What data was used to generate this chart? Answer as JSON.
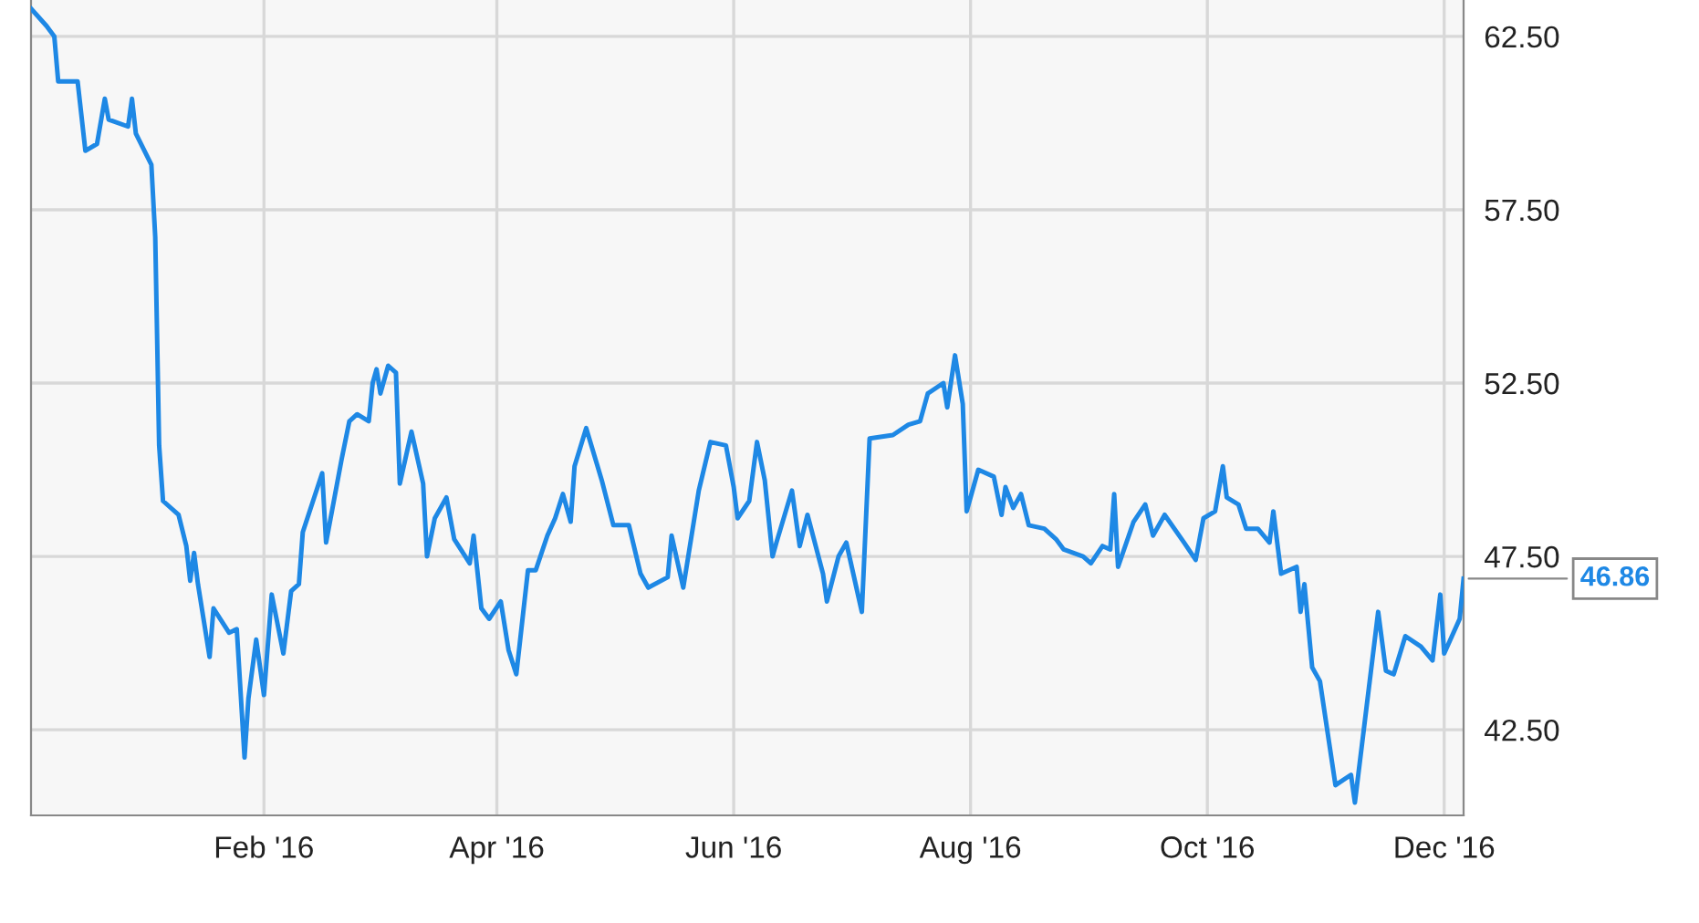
{
  "chart_data": {
    "type": "line",
    "x": [
      "2015-12-03",
      "2015-12-07",
      "2015-12-09",
      "2015-12-10",
      "2015-12-15",
      "2015-12-17",
      "2015-12-20",
      "2015-12-22",
      "2015-12-23",
      "2015-12-28",
      "2015-12-29",
      "2015-12-30",
      "2016-01-03",
      "2016-01-04",
      "2016-01-05",
      "2016-01-06",
      "2016-01-10",
      "2016-01-12",
      "2016-01-13",
      "2016-01-14",
      "2016-01-15",
      "2016-01-18",
      "2016-01-19",
      "2016-01-23",
      "2016-01-25",
      "2016-01-27",
      "2016-01-28",
      "2016-01-30",
      "2016-02-01",
      "2016-02-03",
      "2016-02-06",
      "2016-02-08",
      "2016-02-10",
      "2016-02-11",
      "2016-02-16",
      "2016-02-17",
      "2016-02-21",
      "2016-02-23",
      "2016-02-25",
      "2016-02-28",
      "2016-02-29",
      "2016-03-01",
      "2016-03-02",
      "2016-03-04",
      "2016-03-06",
      "2016-03-07",
      "2016-03-08",
      "2016-03-10",
      "2016-03-13",
      "2016-03-14",
      "2016-03-16",
      "2016-03-19",
      "2016-03-21",
      "2016-03-25",
      "2016-03-26",
      "2016-03-28",
      "2016-03-30",
      "2016-04-02",
      "2016-04-04",
      "2016-04-06",
      "2016-04-09",
      "2016-04-11",
      "2016-04-14",
      "2016-04-16",
      "2016-04-18",
      "2016-04-20",
      "2016-04-21",
      "2016-04-24",
      "2016-04-28",
      "2016-05-01",
      "2016-05-05",
      "2016-05-08",
      "2016-05-10",
      "2016-05-15",
      "2016-05-16",
      "2016-05-19",
      "2016-05-23",
      "2016-05-26",
      "2016-05-30",
      "2016-06-01",
      "2016-06-02",
      "2016-06-05",
      "2016-06-07",
      "2016-06-09",
      "2016-06-11",
      "2016-06-12",
      "2016-06-16",
      "2016-06-18",
      "2016-06-20",
      "2016-06-24",
      "2016-06-25",
      "2016-06-28",
      "2016-06-30",
      "2016-07-04",
      "2016-07-06",
      "2016-07-12",
      "2016-07-16",
      "2016-07-19",
      "2016-07-21",
      "2016-07-25",
      "2016-07-26",
      "2016-07-28",
      "2016-07-30",
      "2016-07-31",
      "2016-08-03",
      "2016-08-07",
      "2016-08-09",
      "2016-08-10",
      "2016-08-12",
      "2016-08-14",
      "2016-08-16",
      "2016-08-20",
      "2016-08-23",
      "2016-08-25",
      "2016-08-30",
      "2016-09-01",
      "2016-09-04",
      "2016-09-06",
      "2016-09-07",
      "2016-09-08",
      "2016-09-12",
      "2016-09-15",
      "2016-09-17",
      "2016-09-20",
      "2016-09-25",
      "2016-09-28",
      "2016-09-30",
      "2016-10-03",
      "2016-10-05",
      "2016-10-06",
      "2016-10-09",
      "2016-10-11",
      "2016-10-14",
      "2016-10-17",
      "2016-10-18",
      "2016-10-20",
      "2016-10-24",
      "2016-10-25",
      "2016-10-26",
      "2016-10-28",
      "2016-10-30",
      "2016-11-03",
      "2016-11-07",
      "2016-11-08",
      "2016-11-14",
      "2016-11-16",
      "2016-11-18",
      "2016-11-21",
      "2016-11-25",
      "2016-11-28",
      "2016-11-30",
      "2016-12-01",
      "2016-12-05",
      "2016-12-06"
    ],
    "series": [
      {
        "color": "#1e88e5",
        "values": [
          63.3,
          62.8,
          62.5,
          61.2,
          61.2,
          59.2,
          59.4,
          60.7,
          60.1,
          59.9,
          60.7,
          59.7,
          58.8,
          56.7,
          50.7,
          49.1,
          48.7,
          47.8,
          46.8,
          47.6,
          46.7,
          44.6,
          46.0,
          45.3,
          45.4,
          41.7,
          43.4,
          45.1,
          43.5,
          46.4,
          44.7,
          46.5,
          46.7,
          48.2,
          49.9,
          47.9,
          50.3,
          51.4,
          51.6,
          51.4,
          52.5,
          52.9,
          52.2,
          53.0,
          52.8,
          49.6,
          50.1,
          51.1,
          49.6,
          47.5,
          48.6,
          49.2,
          48.0,
          47.3,
          48.1,
          46.0,
          45.7,
          46.2,
          44.8,
          44.1,
          47.1,
          47.1,
          48.1,
          48.6,
          49.3,
          48.5,
          50.1,
          51.2,
          49.7,
          48.4,
          48.4,
          47.0,
          46.6,
          46.9,
          48.1,
          46.6,
          49.4,
          50.8,
          50.7,
          49.5,
          48.6,
          49.1,
          50.8,
          49.7,
          47.5,
          47.9,
          49.4,
          47.8,
          48.7,
          47.0,
          46.2,
          47.5,
          47.9,
          45.9,
          50.9,
          51.0,
          51.3,
          51.4,
          52.2,
          52.5,
          51.8,
          53.3,
          51.9,
          48.8,
          50.0,
          49.8,
          48.7,
          49.5,
          48.9,
          49.3,
          48.4,
          48.3,
          48.0,
          47.7,
          47.5,
          47.3,
          47.8,
          47.7,
          49.3,
          47.2,
          48.5,
          49.0,
          48.1,
          48.7,
          47.9,
          47.4,
          48.6,
          48.8,
          50.1,
          49.2,
          49.0,
          48.3,
          48.3,
          47.9,
          48.8,
          47.0,
          47.2,
          45.9,
          46.7,
          44.3,
          43.9,
          40.9,
          41.2,
          40.4,
          45.9,
          44.2,
          44.1,
          45.2,
          44.9,
          44.5,
          46.4,
          44.7,
          45.7,
          46.86
        ]
      }
    ],
    "xlim": [
      "2015-12-03",
      "2016-12-06"
    ],
    "xticks": [
      {
        "value": "2016-02-01",
        "label": "Feb '16"
      },
      {
        "value": "2016-04-01",
        "label": "Apr '16"
      },
      {
        "value": "2016-06-01",
        "label": "Jun '16"
      },
      {
        "value": "2016-08-01",
        "label": "Aug '16"
      },
      {
        "value": "2016-10-01",
        "label": "Oct '16"
      },
      {
        "value": "2016-12-01",
        "label": "Dec '16"
      }
    ],
    "ylim": [
      40.03,
      63.55
    ],
    "yticks": [
      {
        "value": 42.5,
        "label": "42.50"
      },
      {
        "value": 47.5,
        "label": "47.50"
      },
      {
        "value": 52.5,
        "label": "52.50"
      },
      {
        "value": 57.5,
        "label": "57.50"
      },
      {
        "value": 62.5,
        "label": "62.50"
      }
    ],
    "grid": true,
    "line_style": "solid",
    "marker": "none",
    "annotations": [
      {
        "text": "46.86",
        "x": "2016-12-06",
        "y": 46.86
      }
    ]
  }
}
